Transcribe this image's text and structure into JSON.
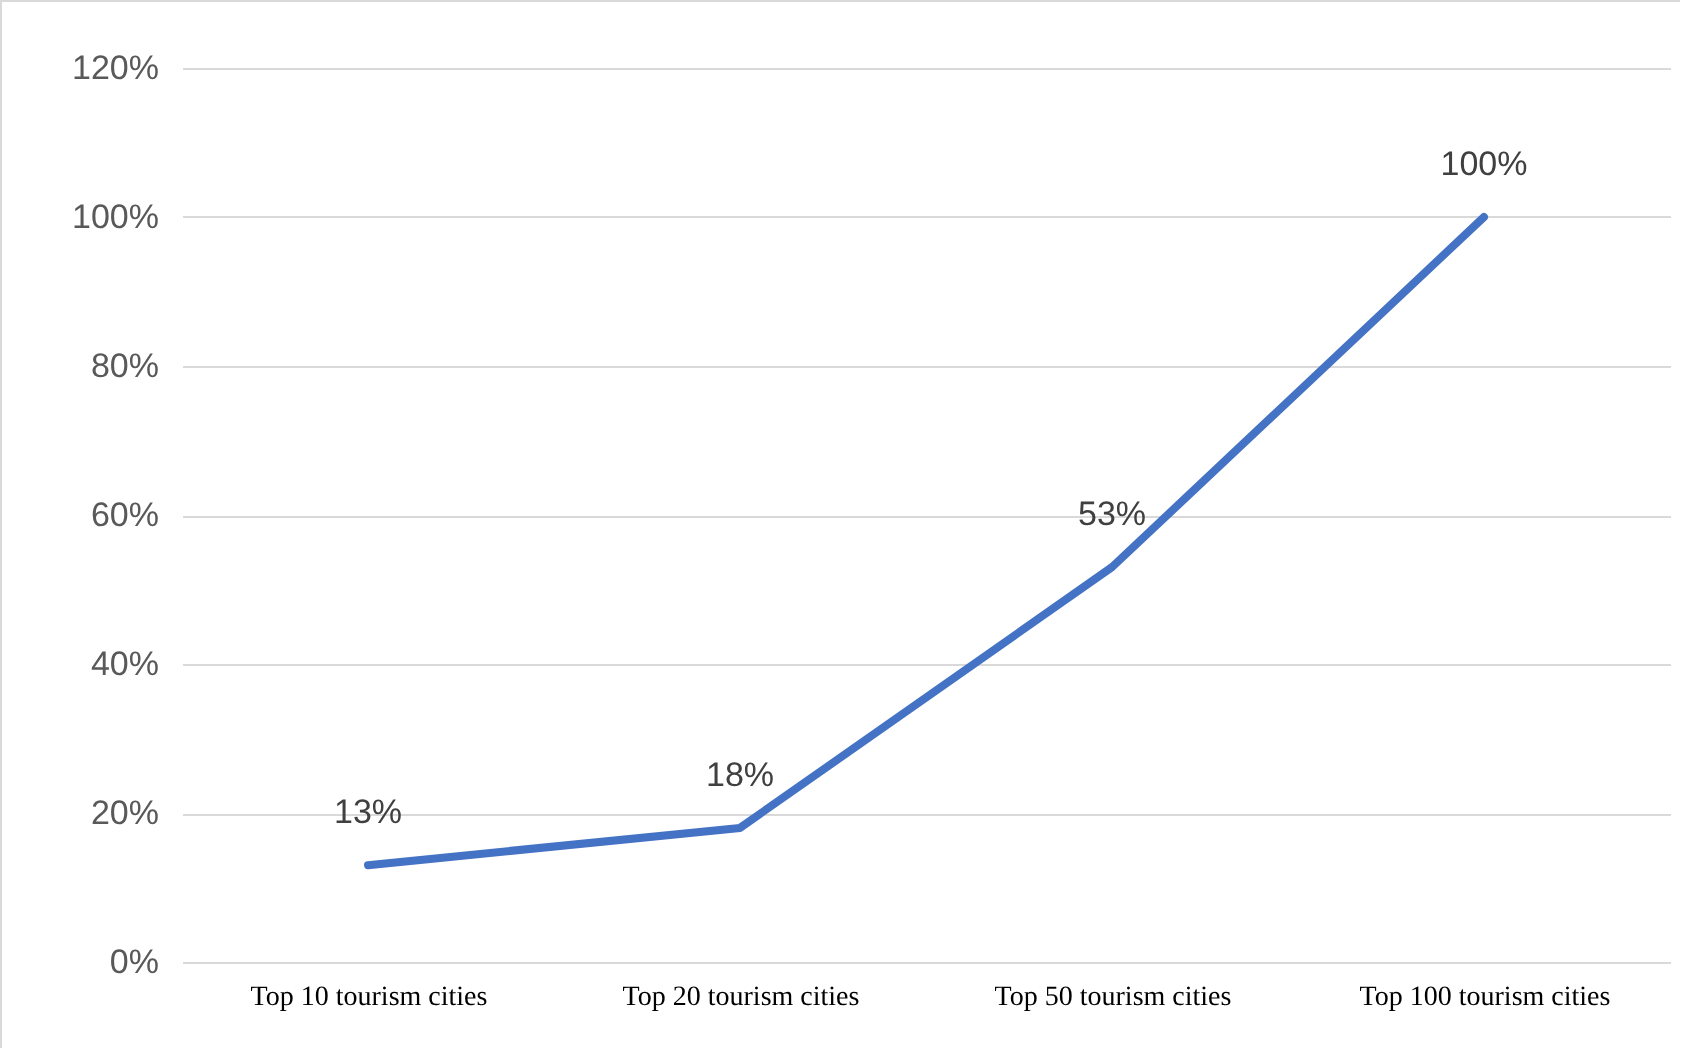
{
  "chart_data": {
    "type": "line",
    "categories": [
      "Top 10 tourism cities",
      "Top 20 tourism cities",
      "Top 50 tourism cities",
      "Top 100 tourism cities"
    ],
    "series": [
      {
        "color": "#4472c4",
        "values": [
          13,
          18,
          53,
          100
        ],
        "value_labels": [
          "13%",
          "18%",
          "53%",
          "100%"
        ]
      }
    ],
    "ylim": [
      0,
      120
    ],
    "yticks": [
      {
        "value": 0,
        "label": "0%"
      },
      {
        "value": 20,
        "label": "20%"
      },
      {
        "value": 40,
        "label": "40%"
      },
      {
        "value": 60,
        "label": "60%"
      },
      {
        "value": 80,
        "label": "80%"
      },
      {
        "value": 100,
        "label": "100%"
      },
      {
        "value": 120,
        "label": "120%"
      }
    ],
    "grid": "y",
    "marker": "none",
    "line_style": "solid"
  }
}
